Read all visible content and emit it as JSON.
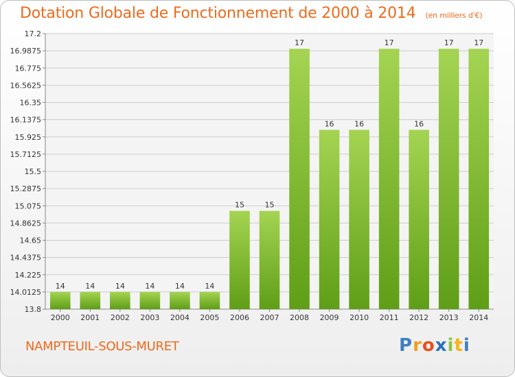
{
  "title": "Dotation Globale de Fonctionnement de 2000 à 2014",
  "unit": "(en milliers d'€)",
  "commune": "NAMPTEUIL-SOUS-MURET",
  "logo": {
    "text": "Proxiti",
    "letters": [
      {
        "ch": "P",
        "color": "#3d7fc1"
      },
      {
        "ch": "r",
        "color": "#f39c1f"
      },
      {
        "ch": "o",
        "color": "#e94e1b"
      },
      {
        "ch": "x",
        "color": "#2b73b9"
      },
      {
        "ch": "i",
        "color": "#8bc53f"
      },
      {
        "ch": "t",
        "color": "#f7b417"
      },
      {
        "ch": "i",
        "color": "#3d7fc1"
      }
    ]
  },
  "colors": {
    "title": "#ee6a1c",
    "bar_light": "#a4d452",
    "bar_dark": "#5f9e17",
    "grid": "#cccccc"
  },
  "chart_data": {
    "type": "bar",
    "title": "Dotation Globale de Fonctionnement de 2000 à 2014",
    "categories": [
      "2000",
      "2001",
      "2002",
      "2003",
      "2004",
      "2005",
      "2006",
      "2007",
      "2008",
      "2009",
      "2010",
      "2011",
      "2012",
      "2013",
      "2014"
    ],
    "values": [
      14,
      14,
      14,
      14,
      14,
      14,
      15,
      15,
      17,
      16,
      16,
      17,
      16,
      17,
      17
    ],
    "bar_tops": [
      14.0125,
      14.0125,
      14.0125,
      14.0125,
      14.0125,
      14.0125,
      15.0125,
      15.0125,
      17.0125,
      16.0125,
      16.0125,
      17.0125,
      16.0125,
      17.0125,
      17.0125
    ],
    "ylim": [
      13.8,
      17.2
    ],
    "yticks": [
      "13.8",
      "14.0125",
      "14.225",
      "14.4375",
      "14.65",
      "14.8625",
      "15.075",
      "15.2875",
      "15.5",
      "15.7125",
      "15.925",
      "16.1375",
      "16.35",
      "16.5625",
      "16.775",
      "16.9875",
      "17.2"
    ],
    "grid": true,
    "xlabel": "",
    "ylabel": ""
  }
}
